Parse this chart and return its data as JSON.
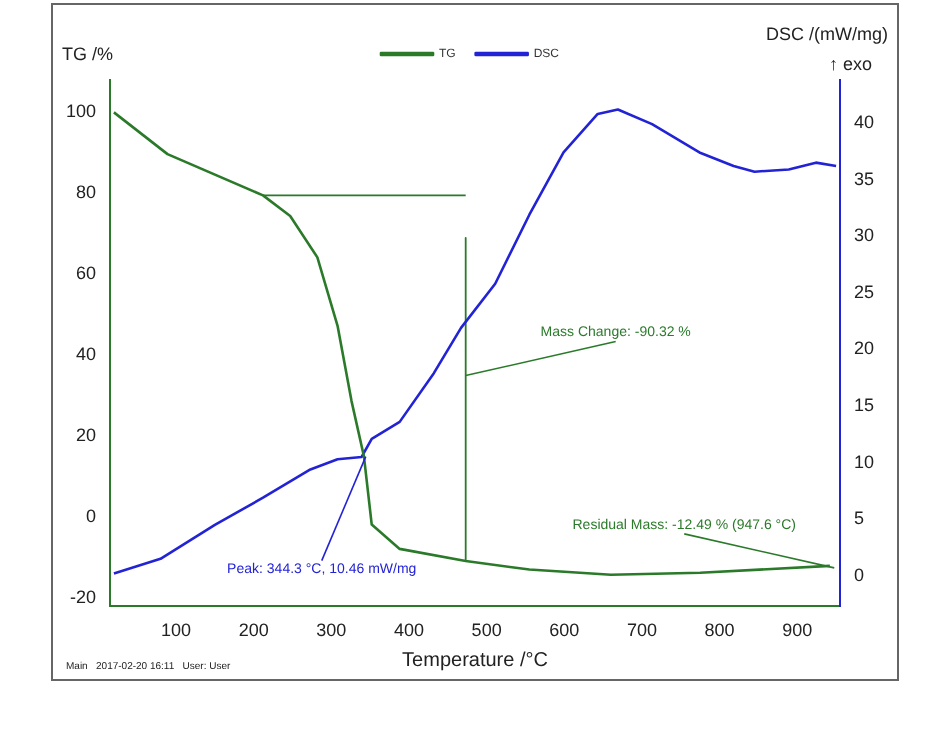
{
  "chart_data": {
    "type": "line",
    "xlabel": "Temperature /°C",
    "ylabel": "TG /%",
    "y2label": "DSC /(mW/mg)",
    "xlim": [
      15,
      955
    ],
    "xticks": [
      100,
      200,
      300,
      400,
      500,
      600,
      700,
      800,
      900
    ],
    "ylim": [
      -22,
      108
    ],
    "yticks": [
      -20,
      0,
      20,
      40,
      60,
      80,
      100
    ],
    "y2lim": [
      -2.7,
      43.8
    ],
    "y2ticks": [
      0,
      5,
      10,
      15,
      20,
      25,
      30,
      35,
      40
    ],
    "legend": "top",
    "grid": false,
    "marker": "none",
    "line_style": "solid",
    "series": [
      {
        "name": "TG",
        "color": "#2a7a2a",
        "x": [
          20,
          89,
          212,
          247,
          282,
          308,
          326,
          342,
          352,
          388,
          473,
          555,
          660,
          775,
          942
        ],
        "values": [
          100,
          89.7,
          79.5,
          74.4,
          64.2,
          47.3,
          28.7,
          15,
          -1.8,
          -7.8,
          -10.8,
          -12.9,
          -14.2,
          -13.7,
          -12.0
        ]
      },
      {
        "name": "DSC",
        "color": "#2323d6",
        "axis": "y2",
        "x": [
          20,
          80,
          150,
          212,
          273,
          308,
          339,
          352,
          388,
          432,
          467,
          511,
          555,
          599,
          643,
          669,
          713,
          774,
          818,
          845,
          889,
          924,
          950
        ],
        "values": [
          0.2,
          1.5,
          4.5,
          6.9,
          9.4,
          10.3,
          10.5,
          12.1,
          13.6,
          17.9,
          21.9,
          25.8,
          31.9,
          37.4,
          40.8,
          41.2,
          39.9,
          37.4,
          36.2,
          35.7,
          35.9,
          36.5,
          36.2
        ]
      },
      {
        "type": "line",
        "color": "#2a7a2a",
        "x": [
          212,
          473
        ],
        "values": [
          79.5,
          79.5
        ]
      },
      {
        "type": "line",
        "color": "#2a7a2a",
        "x": [
          473,
          473
        ],
        "values": [
          69,
          -10.8
        ]
      }
    ],
    "annotations": [
      {
        "text": "Peak: 344.3 °C, 10.46 mW/mg",
        "x": 344.3,
        "y": 15
      },
      {
        "text": "Mass Change: -90.32 %",
        "x": 473,
        "y": 35
      },
      {
        "text": "Residual Mass: -12.49 % (947.6 °C)",
        "x": 947.6,
        "y": -12.49
      },
      "↑ exo",
      "Main   2017-02-20 16:11   User: User"
    ]
  }
}
